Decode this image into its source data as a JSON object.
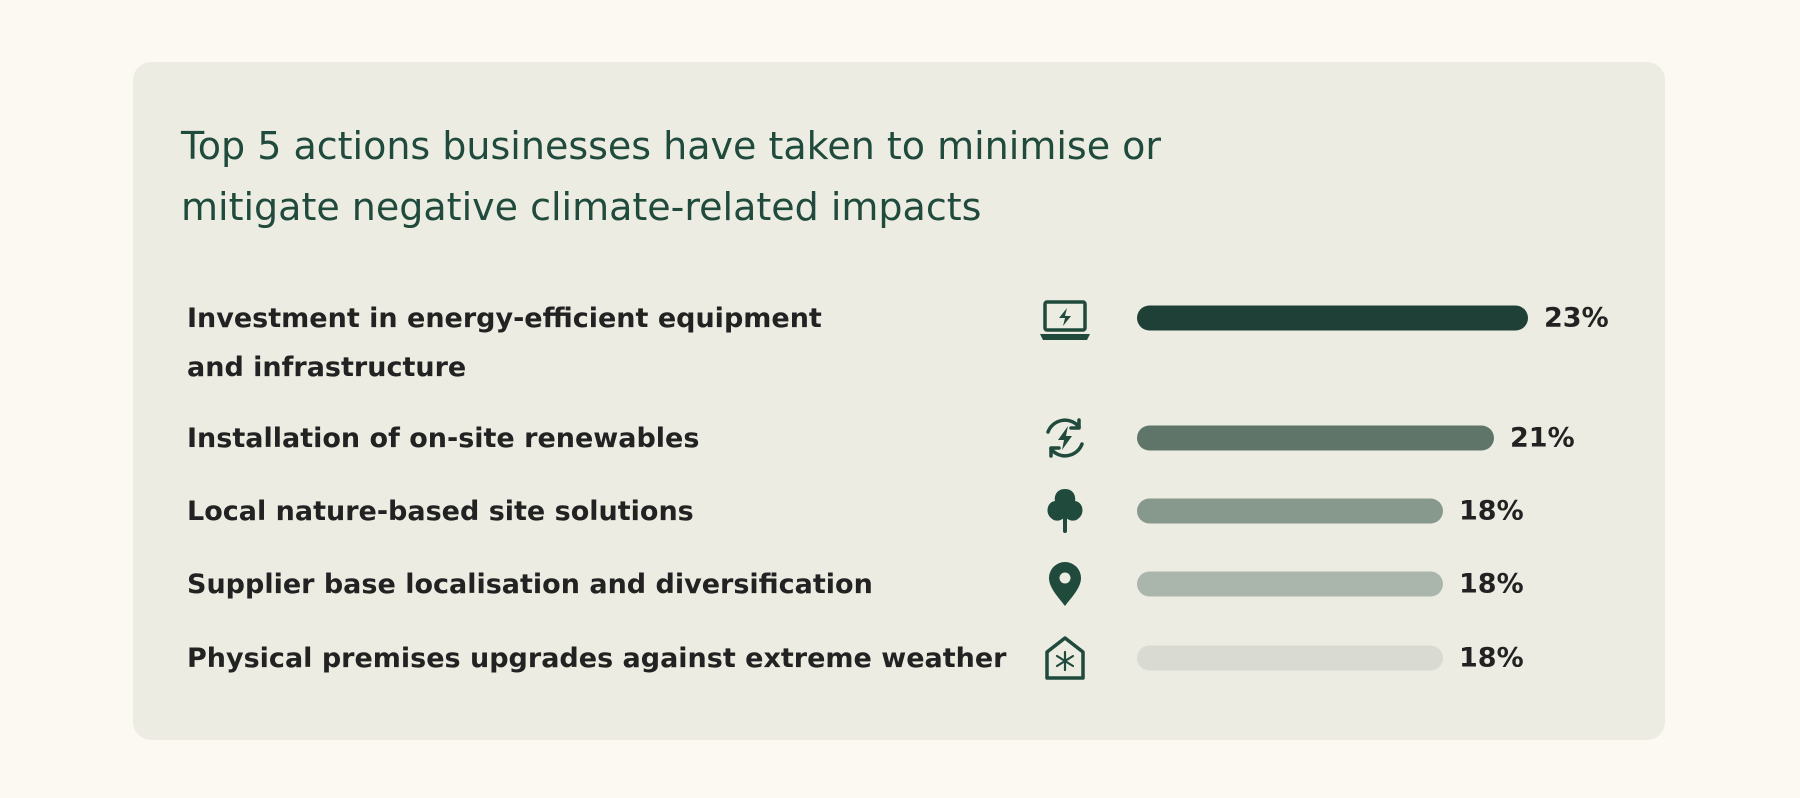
{
  "chart_data": {
    "type": "bar",
    "orientation": "horizontal",
    "title": "Top 5 actions businesses have taken to minimise or mitigate negative climate-related impacts",
    "categories": [
      "Investment in energy-efficient equipment\nand infrastructure",
      "Installation of on-site renewables",
      "Local nature-based site solutions",
      "Supplier base localisation and diversification",
      "Physical premises upgrades against extreme weather"
    ],
    "values": [
      23,
      21,
      18,
      18,
      18
    ],
    "value_labels": [
      "23%",
      "21%",
      "18%",
      "18%",
      "18%"
    ],
    "colors": [
      "#1f4037",
      "#5f7569",
      "#87998d",
      "#aab6ac",
      "#d9dbd3"
    ]
  }
}
